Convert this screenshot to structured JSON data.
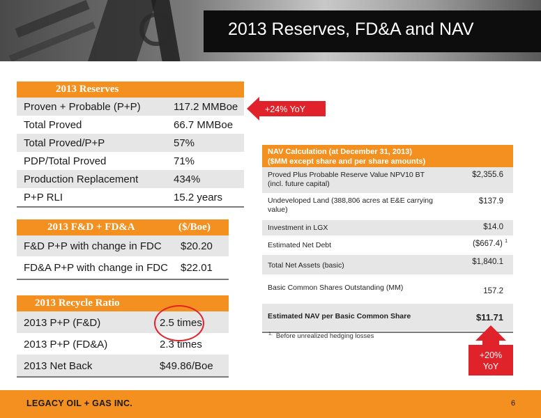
{
  "title": "2013 Reserves, FD&A and NAV",
  "reserves": {
    "header": "2013 Reserves",
    "rows": [
      {
        "label": "Proven + Probable (P+P)",
        "value": "117.2 MMBoe"
      },
      {
        "label": "Total Proved",
        "value": "66.7 MMBoe"
      },
      {
        "label": "Total Proved/P+P",
        "value": "57%"
      },
      {
        "label": "PDP/Total Proved",
        "value": "71%"
      },
      {
        "label": "Production Replacement",
        "value": "434%"
      },
      {
        "label": "P+P RLI",
        "value": "15.2 years"
      }
    ]
  },
  "yoy_callout": "+24% YoY",
  "fda": {
    "header": "2013 F&D + FD&A",
    "unit": "($/Boe)",
    "rows": [
      {
        "label": "F&D P+P with change in FDC",
        "value": "$20.20"
      },
      {
        "label": "FD&A P+P with change in FDC",
        "value": "$22.01"
      }
    ]
  },
  "recycle": {
    "header": "2013 Recycle Ratio",
    "rows": [
      {
        "label": "2013 P+P (F&D)",
        "value": "2.5 times"
      },
      {
        "label": "2013 P+P (FD&A)",
        "value": "2.3 times"
      },
      {
        "label": "2013 Net Back",
        "value": "$49.86/Boe"
      }
    ]
  },
  "nav": {
    "header_line1": "NAV Calculation (at December 31, 2013)",
    "header_line2": "($MM except share and per share amounts)",
    "rows": [
      {
        "label1": "Proved Plus Probable Reserve Value NPV10 BT",
        "label2": "(incl. future capital)",
        "value": "$2,355.6"
      },
      {
        "label1": "Undeveloped Land (388,806 acres at E&E carrying",
        "label2": "value)",
        "value": "$137.9"
      },
      {
        "label1": "Investment in LGX",
        "label2": "",
        "value": "$14.0"
      },
      {
        "label1": "Estimated Net Debt",
        "label2": "",
        "value": "($667.4)",
        "sup": "1"
      },
      {
        "label1": "Total Net Assets (basic)",
        "label2": "",
        "value": "$1,840.1"
      },
      {
        "label1": "Basic Common Shares Outstanding (MM)",
        "label2": "",
        "value": "157.2"
      },
      {
        "label1": "Estimated NAV per Basic Common Share",
        "label2": "",
        "value": "$11.71"
      }
    ]
  },
  "nav_callout_line1": "+20%",
  "nav_callout_line2": "YoY",
  "footnote_mark": "1.",
  "footnote": "Before unrealized hedging losses",
  "footer_brand": "LEGACY OIL + GAS INC.",
  "page_number": "6",
  "colors": {
    "accent": "#f39020",
    "callout": "#e0232b",
    "title_bg": "#0d0d0d",
    "row_gray": "#e6e6e6"
  }
}
